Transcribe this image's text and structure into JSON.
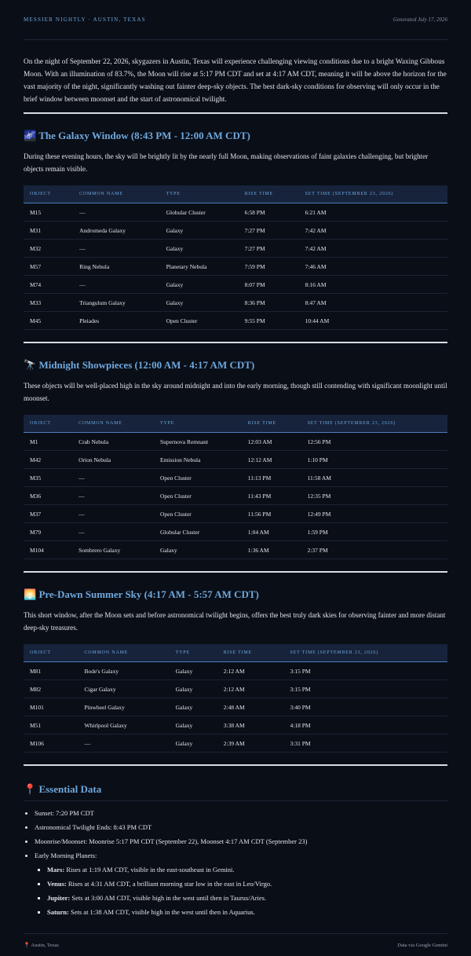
{
  "header": {
    "title": "MESSIER NIGHTLY · AUSTIN, TEXAS",
    "generated": "Generated July 17, 2026"
  },
  "intro": "On the night of September 22, 2026, skygazers in Austin, Texas will experience challenging viewing conditions due to a bright Waxing Gibbous Moon. With an illumination of 83.7%, the Moon will rise at 5:17 PM CDT and set at 4:17 AM CDT, meaning it will be above the horizon for the vast majority of the night, significantly washing out fainter deep-sky objects. The best dark-sky conditions for observing will only occur in the brief window between moonset and the start of astronomical twilight.",
  "sections": [
    {
      "icon": "🌌",
      "title": "The Galaxy Window (8:43 PM - 12:00 AM CDT)",
      "description": "During these evening hours, the sky will be brightly lit by the nearly full Moon, making observations of faint galaxies challenging, but brighter objects remain visible.",
      "columns": [
        "OBJECT",
        "COMMON NAME",
        "TYPE",
        "RISE TIME",
        "SET TIME (SEPTEMBER 23, 2026)"
      ],
      "rows": [
        [
          "M15",
          "—",
          "Globular Cluster",
          "6:58 PM",
          "6:21 AM"
        ],
        [
          "M31",
          "Andromeda Galaxy",
          "Galaxy",
          "7:27 PM",
          "7:42 AM"
        ],
        [
          "M32",
          "—",
          "Galaxy",
          "7:27 PM",
          "7:42 AM"
        ],
        [
          "M57",
          "Ring Nebula",
          "Planetary Nebula",
          "7:59 PM",
          "7:46 AM"
        ],
        [
          "M74",
          "—",
          "Galaxy",
          "8:07 PM",
          "8:16 AM"
        ],
        [
          "M33",
          "Triangulum Galaxy",
          "Galaxy",
          "8:36 PM",
          "8:47 AM"
        ],
        [
          "M45",
          "Pleiades",
          "Open Cluster",
          "9:55 PM",
          "10:44 AM"
        ]
      ]
    },
    {
      "icon": "🔭",
      "title": "Midnight Showpieces (12:00 AM - 4:17 AM CDT)",
      "description": "These objects will be well-placed high in the sky around midnight and into the early morning, though still contending with significant moonlight until moonset.",
      "columns": [
        "OBJECT",
        "COMMON NAME",
        "TYPE",
        "RISE TIME",
        "SET TIME (SEPTEMBER 23, 2026)"
      ],
      "rows": [
        [
          "M1",
          "Crab Nebula",
          "Supernova Remnant",
          "12:03 AM",
          "12:56 PM"
        ],
        [
          "M42",
          "Orion Nebula",
          "Emission Nebula",
          "12:12 AM",
          "1:10 PM"
        ],
        [
          "M35",
          "—",
          "Open Cluster",
          "11:13 PM",
          "11:58 AM"
        ],
        [
          "M36",
          "—",
          "Open Cluster",
          "11:43 PM",
          "12:35 PM"
        ],
        [
          "M37",
          "—",
          "Open Cluster",
          "11:56 PM",
          "12:49 PM"
        ],
        [
          "M79",
          "—",
          "Globular Cluster",
          "1:04 AM",
          "1:59 PM"
        ],
        [
          "M104",
          "Sombrero Galaxy",
          "Galaxy",
          "1:36 AM",
          "2:37 PM"
        ]
      ]
    },
    {
      "icon": "🌅",
      "title": "Pre-Dawn Summer Sky (4:17 AM - 5:57 AM CDT)",
      "description": "This short window, after the Moon sets and before astronomical twilight begins, offers the best truly dark skies for observing fainter and more distant deep-sky treasures.",
      "columns": [
        "OBJECT",
        "COMMON NAME",
        "TYPE",
        "RISE TIME",
        "SET TIME (SEPTEMBER 23, 2026)"
      ],
      "rows": [
        [
          "M81",
          "Bode's Galaxy",
          "Galaxy",
          "2:12 AM",
          "3:15 PM"
        ],
        [
          "M82",
          "Cigar Galaxy",
          "Galaxy",
          "2:12 AM",
          "3:15 PM"
        ],
        [
          "M101",
          "Pinwheel Galaxy",
          "Galaxy",
          "2:48 AM",
          "3:40 PM"
        ],
        [
          "M51",
          "Whirlpool Galaxy",
          "Galaxy",
          "3:38 AM",
          "4:18 PM"
        ],
        [
          "M106",
          "—",
          "Galaxy",
          "2:39 AM",
          "3:31 PM"
        ]
      ]
    }
  ],
  "essential": {
    "icon": "📍",
    "title": "Essential Data",
    "items": [
      "Sunset: 7:20 PM CDT",
      "Astronomical Twilight Ends: 8:43 PM CDT",
      "Moonrise/Moonset: Moonrise 5:17 PM CDT (September 22), Moonset 4:17 AM CDT (September 23)"
    ],
    "planets_label": "Early Morning Planets:",
    "planets": [
      {
        "name": "Mars:",
        "text": "Rises at 1:19 AM CDT, visible in the east-southeast in Gemini."
      },
      {
        "name": "Venus:",
        "text": "Rises at 4:31 AM CDT, a brilliant morning star low in the east in Leo/Virgo."
      },
      {
        "name": "Jupiter:",
        "text": "Sets at 3:00 AM CDT, visible high in the west until then in Taurus/Aries."
      },
      {
        "name": "Saturn:",
        "text": "Sets at 1:38 AM CDT, visible high in the west until then in Aquarius."
      }
    ]
  },
  "footer": {
    "icon": "📍",
    "location": "Austin, Texas",
    "source": "Data via Google Gemini"
  }
}
